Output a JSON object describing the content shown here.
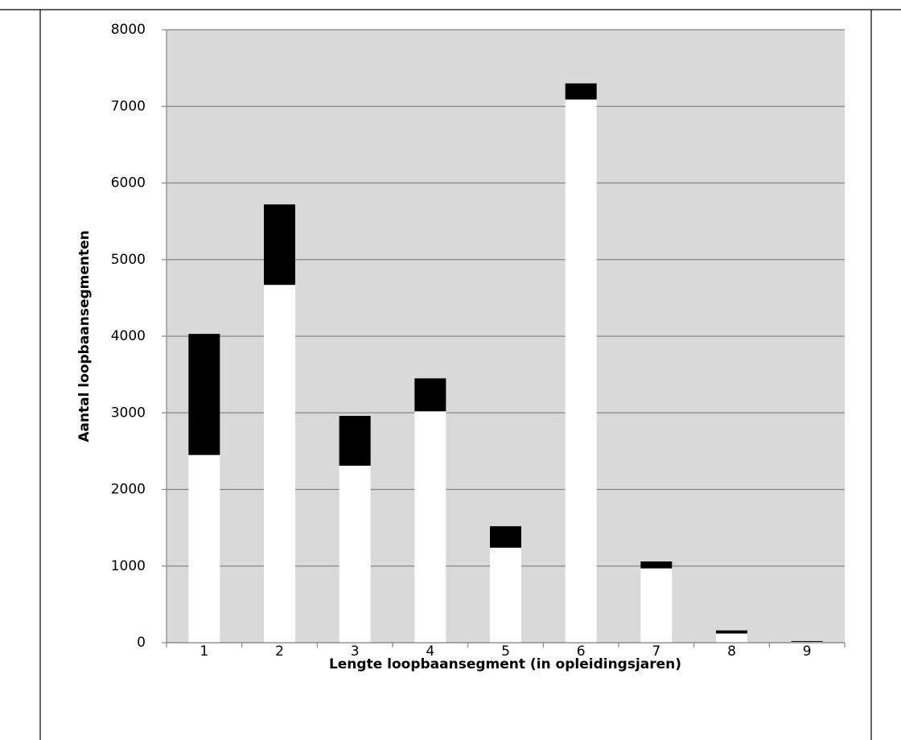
{
  "chart_data": {
    "type": "stacked_bar",
    "y_label": "Aantal loopbaansegmenten",
    "x_label": "Lengte loopbaansegment (in opleidingsjaren)",
    "categories": [
      "1",
      "2",
      "3",
      "4",
      "5",
      "6",
      "7",
      "8",
      "9"
    ],
    "series": [
      {
        "color": "#ffffff",
        "values": [
          2450,
          4670,
          2310,
          3020,
          1240,
          7090,
          970,
          120,
          10
        ]
      },
      {
        "color": "#000000",
        "values": [
          1580,
          1050,
          650,
          430,
          280,
          210,
          90,
          40,
          10
        ]
      }
    ],
    "ylim": [
      0,
      8000
    ],
    "yticks": [
      0,
      1000,
      2000,
      3000,
      4000,
      5000,
      6000,
      7000,
      8000
    ],
    "grid": true,
    "plot_background": "#d9d9d9"
  }
}
